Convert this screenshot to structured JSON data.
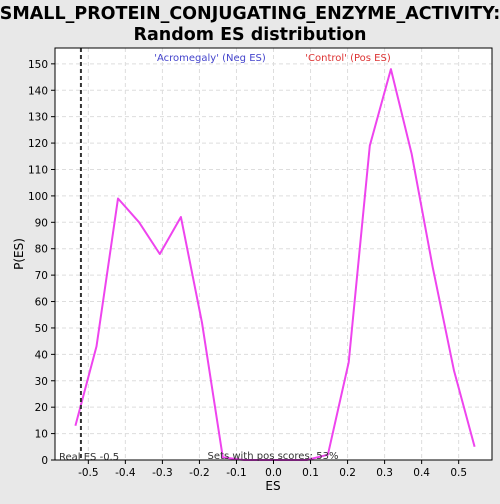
{
  "chart_data": {
    "type": "line",
    "title_line1": "SMALL_PROTEIN_CONJUGATING_ENZYME_ACTIVITY:",
    "title_line2": "Random ES distribution",
    "xlabel": "ES",
    "ylabel": "P(ES)",
    "xlim": [
      -0.59,
      0.59
    ],
    "ylim": [
      0,
      156
    ],
    "x_ticks": [
      -0.5,
      -0.4,
      -0.3,
      -0.2,
      -0.1,
      0.0,
      0.1,
      0.2,
      0.3,
      0.4,
      0.5
    ],
    "x_tick_labels": [
      "-0.5",
      "-0.4",
      "-0.3",
      "-0.2",
      "-0.1",
      "0.0",
      "0.1",
      "0.2",
      "0.3",
      "0.4",
      "0.5"
    ],
    "y_ticks": [
      0,
      10,
      20,
      30,
      40,
      50,
      60,
      70,
      80,
      90,
      100,
      110,
      120,
      130,
      140,
      150
    ],
    "y_tick_labels": [
      "0",
      "10",
      "20",
      "30",
      "40",
      "50",
      "60",
      "70",
      "80",
      "90",
      "100",
      "110",
      "120",
      "130",
      "140",
      "150"
    ],
    "grid": true,
    "series": [
      {
        "color": "#ee44ee",
        "x": [
          -0.535,
          -0.478,
          -0.42,
          -0.363,
          -0.307,
          -0.25,
          -0.193,
          -0.137,
          -0.08,
          -0.023,
          0.033,
          0.09,
          0.147,
          0.203,
          0.26,
          0.317,
          0.373,
          0.43,
          0.487,
          0.543
        ],
        "y": [
          13,
          43,
          99,
          90,
          78,
          92,
          52,
          1,
          0,
          0,
          0,
          0,
          2,
          37,
          119,
          148,
          116,
          73,
          34,
          5
        ]
      }
    ],
    "real_es": -0.52,
    "real_es_label": "Real ES -0.5",
    "neg_label": "'Acromegaly' (Neg ES)",
    "pos_label": "'Control' (Pos ES)",
    "pos_scores_label": "Sets with pos scores: 53%",
    "colors": {
      "line": "#ee44ee",
      "neg_label": "#4444cc",
      "pos_label": "#dd3333",
      "real_es_line": "#333333",
      "grid": "#dddddd"
    }
  }
}
